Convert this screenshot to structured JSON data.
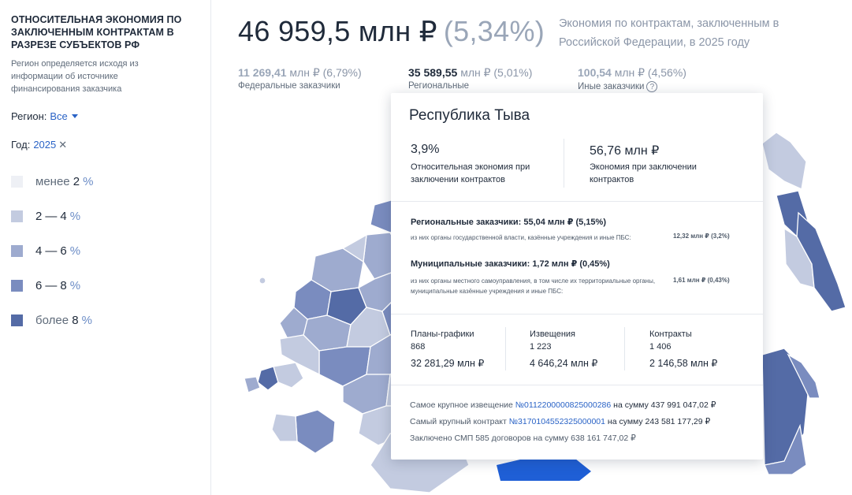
{
  "sidebar": {
    "title": "ОТНОСИТЕЛЬНАЯ ЭКОНОМИЯ ПО ЗАКЛЮЧЕННЫМ КОНТРАКТАМ В РАЗРЕЗЕ СУБЪЕКТОВ РФ",
    "subtitle": "Регион определяется исходя из информации об источнике финансирования заказчика",
    "region_label": "Регион:",
    "region_value": "Все",
    "year_label": "Год:",
    "year_value": "2025",
    "legend": [
      {
        "prefix": "менее",
        "a": "2",
        "b": "",
        "pct": "%",
        "color": "#eef0f5"
      },
      {
        "prefix": "",
        "a": "2",
        "b": "4",
        "pct": "%",
        "color": "#c3cbe0"
      },
      {
        "prefix": "",
        "a": "4",
        "b": "6",
        "pct": "%",
        "color": "#9eabcf"
      },
      {
        "prefix": "",
        "a": "6",
        "b": "8",
        "pct": "%",
        "color": "#7a8cbf"
      },
      {
        "prefix": "более",
        "a": "8",
        "b": "",
        "pct": "%",
        "color": "#546ba6"
      }
    ]
  },
  "header": {
    "total": "46 959,5 млн ₽",
    "total_pct": "(5,34%)",
    "description": "Экономия по контрактам, заключенным в Российской Федерации, в 2025 году",
    "stats": [
      {
        "amount": "11 269,41",
        "rest": "млн ₽ (6,79%)",
        "label": "Федеральные заказчики"
      },
      {
        "amount": "35 589,55",
        "rest": "млн ₽ (5,01%)",
        "label": "Региональные"
      },
      {
        "amount": "100,54",
        "rest": "млн ₽ (4,56%)",
        "label": "Иные заказчики"
      }
    ]
  },
  "tooltip": {
    "title": "Республика Тыва",
    "rel_value": "3,9%",
    "rel_caption": "Относительная экономия при заключении контрактов",
    "abs_value": "56,76 млн ₽",
    "abs_caption": "Экономия при заключении контрактов",
    "regional": "Региональные заказчики: 55,04 млн ₽ (5,15%)",
    "regional_sub": "из них органы государственной власти, казённые учреждения и иные ПБС:",
    "regional_sub_val": "12,32 млн ₽ (3,2%)",
    "municipal": "Муниципальные заказчики: 1,72 млн ₽ (0,45%)",
    "municipal_sub": "из них органы местного самоуправления, в том числе их территориальные органы, муниципальные казённые учреждения и иные ПБС:",
    "municipal_sub_val": "1,61 млн ₽ (0,43%)",
    "columns": [
      {
        "label": "Планы-графики",
        "count": "868",
        "sum": "32 281,29 млн ₽"
      },
      {
        "label": "Извещения",
        "count": "1 223",
        "sum": "4 646,24 млн ₽"
      },
      {
        "label": "Контракты",
        "count": "1 406",
        "sum": "2 146,58 млн ₽"
      }
    ],
    "largest_notice_prefix": "Самое крупное извещение",
    "largest_notice_link": "№0112200000825000286",
    "largest_notice_suffix": "на сумму 437 991 047,02 ₽",
    "largest_contract_prefix": "Самый крупный контракт",
    "largest_contract_link": "№3170104552325000001",
    "largest_contract_suffix": "на сумму 243 581 177,29 ₽",
    "smp": "Заключено СМП 585 договоров на сумму 638 161 747,02 ₽"
  },
  "map_colors": {
    "lightest": "#eef0f5",
    "light": "#c3cbe0",
    "mid": "#9eabcf",
    "dark": "#7a8cbf",
    "darkest": "#546ba6",
    "highlight": "#1f5fd6"
  }
}
